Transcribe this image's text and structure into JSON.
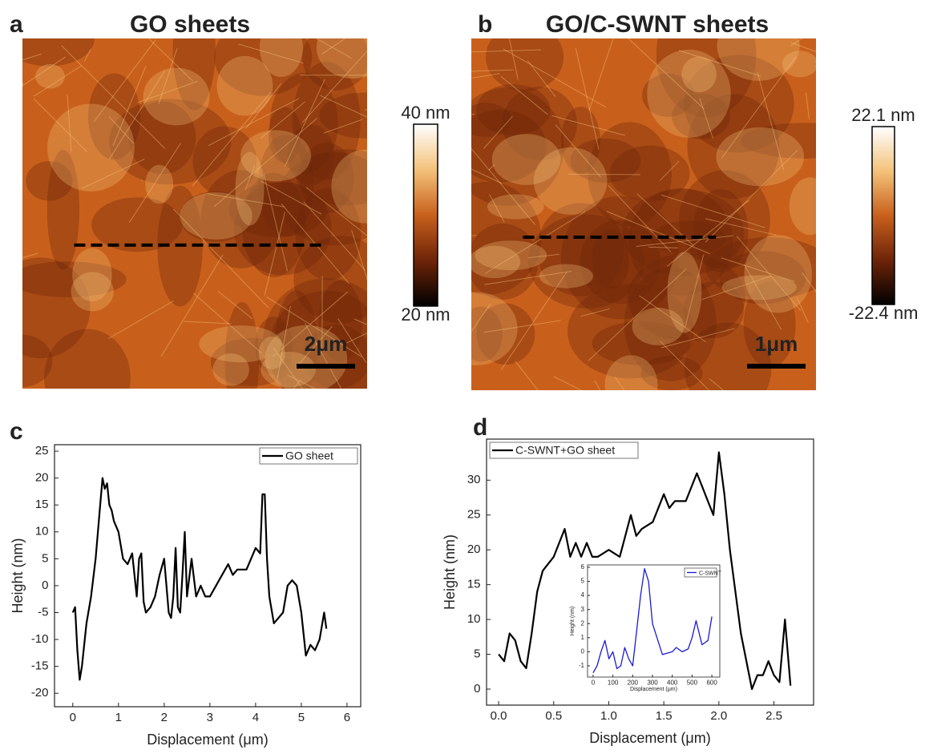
{
  "chart_data": [
    {
      "type": "image",
      "label": "a",
      "title": "GO sheets",
      "colormap": [
        "#000000",
        "#6e2408",
        "#c8601c",
        "#f4c27a",
        "#ffffff"
      ],
      "clim": [
        20,
        40
      ],
      "cticks": [
        {
          "value": 40,
          "label": "40 nm"
        },
        {
          "value": 20,
          "label": "20 nm"
        }
      ],
      "scale_bar": "2μm"
    },
    {
      "type": "image",
      "label": "b",
      "title": "GO/C-SWNT  sheets",
      "colormap": [
        "#000000",
        "#6e2408",
        "#c8601c",
        "#f4c27a",
        "#ffffff"
      ],
      "clim": [
        -22.4,
        22.1
      ],
      "cticks": [
        {
          "value": 22.1,
          "label": "22.1 nm"
        },
        {
          "value": -22.4,
          "label": "-22.4 nm"
        }
      ],
      "scale_bar": "1μm"
    },
    {
      "type": "line",
      "label": "c",
      "xlabel": "Displacement (μm)",
      "ylabel": "Height (nm)",
      "x": [
        0,
        0.05,
        0.1,
        0.15,
        0.2,
        0.3,
        0.4,
        0.5,
        0.6,
        0.65,
        0.7,
        0.75,
        0.8,
        0.85,
        0.9,
        1.0,
        1.1,
        1.2,
        1.3,
        1.4,
        1.45,
        1.5,
        1.55,
        1.6,
        1.7,
        1.8,
        1.9,
        2.0,
        2.1,
        2.15,
        2.2,
        2.25,
        2.3,
        2.35,
        2.4,
        2.45,
        2.5,
        2.6,
        2.7,
        2.8,
        2.9,
        3.0,
        3.2,
        3.4,
        3.5,
        3.6,
        3.8,
        4.0,
        4.1,
        4.15,
        4.2,
        4.25,
        4.3,
        4.4,
        4.5,
        4.6,
        4.7,
        4.8,
        4.9,
        5.0,
        5.1,
        5.2,
        5.3,
        5.4,
        5.5,
        5.55
      ],
      "series": [
        {
          "name": "GO sheet",
          "color": "#000000",
          "values": [
            -5,
            -4,
            -12,
            -17.5,
            -15,
            -7,
            -2,
            5,
            15,
            20,
            18,
            19,
            15,
            14,
            12,
            10,
            5,
            4,
            6,
            -2,
            5,
            6,
            -3,
            -5,
            -4,
            -2,
            2,
            5,
            -5,
            -6,
            -2,
            7,
            -4,
            -5,
            2,
            10,
            -2,
            5,
            -2,
            0,
            -2,
            -2,
            1,
            4,
            2,
            3,
            3,
            7,
            6,
            17,
            17,
            5,
            -2,
            -7,
            -6,
            -5,
            0,
            1,
            0,
            -5,
            -13,
            -11,
            -12,
            -10,
            -5,
            -8
          ]
        }
      ],
      "xlim": [
        -0.4,
        6.3
      ],
      "xticks": [
        0,
        1,
        2,
        3,
        4,
        5,
        6
      ],
      "ylim": [
        -22.5,
        26.2
      ],
      "yticks": [
        -20,
        -15,
        -10,
        -5,
        0,
        5,
        10,
        15,
        20,
        25
      ],
      "legend": "upper right"
    },
    {
      "type": "line",
      "label": "d",
      "xlabel": "Displacement (μm)",
      "ylabel": "Height (nm)",
      "x": [
        0,
        0.05,
        0.1,
        0.15,
        0.2,
        0.25,
        0.3,
        0.35,
        0.4,
        0.5,
        0.6,
        0.65,
        0.7,
        0.75,
        0.8,
        0.85,
        0.9,
        1.0,
        1.1,
        1.2,
        1.25,
        1.3,
        1.4,
        1.5,
        1.55,
        1.6,
        1.7,
        1.8,
        1.85,
        1.9,
        1.95,
        2.0,
        2.05,
        2.1,
        2.2,
        2.3,
        2.35,
        2.4,
        2.45,
        2.5,
        2.55,
        2.6,
        2.65
      ],
      "series": [
        {
          "name": "C-SWNT+GO sheet",
          "color": "#000000",
          "values": [
            5,
            4,
            8,
            7,
            4,
            3,
            8,
            14,
            17,
            19,
            23,
            19,
            21,
            19,
            21,
            19,
            19,
            20,
            19,
            25,
            22,
            23,
            24,
            28,
            26,
            27,
            27,
            31,
            29,
            27,
            25,
            34,
            28,
            20,
            8,
            0,
            2,
            2,
            4,
            2,
            1,
            10,
            0.5
          ]
        }
      ],
      "xlim": [
        -0.11,
        2.86
      ],
      "xticks": [
        {
          "value": 0,
          "label": "0.0"
        },
        0.5,
        {
          "value": 1,
          "label": "1.0"
        },
        1.5,
        {
          "value": 2,
          "label": "2.0"
        },
        2.5
      ],
      "ylim": [
        -2.3,
        35.9
      ],
      "yticks": [
        0,
        5,
        10,
        15,
        20,
        25,
        30
      ],
      "legend": "upper left"
    },
    {
      "type": "line",
      "xlabel": "Displacement (μm)",
      "ylabel": "Height (nm)",
      "x": [
        0,
        20,
        40,
        60,
        80,
        100,
        120,
        140,
        160,
        180,
        200,
        220,
        240,
        260,
        280,
        300,
        350,
        400,
        420,
        450,
        480,
        500,
        520,
        550,
        580,
        600
      ],
      "series": [
        {
          "name": "C-SWNT",
          "color": "#1a1ad6",
          "values": [
            -1.5,
            -1,
            0,
            0.8,
            -0.5,
            0,
            -1.2,
            -1,
            0.3,
            -0.5,
            -1,
            1.5,
            4,
            5.9,
            5,
            2,
            -0.2,
            0,
            0.3,
            0,
            0.2,
            1,
            2.2,
            0.5,
            0.8,
            2.5
          ]
        }
      ],
      "xlim": [
        -28,
        640
      ],
      "xticks": [
        0,
        100,
        200,
        300,
        400,
        500,
        600
      ],
      "ylim": [
        -1.8,
        6.17
      ],
      "yticks": [
        -1,
        0,
        1,
        2,
        3,
        4,
        5,
        6
      ],
      "legend": "upper right"
    }
  ]
}
